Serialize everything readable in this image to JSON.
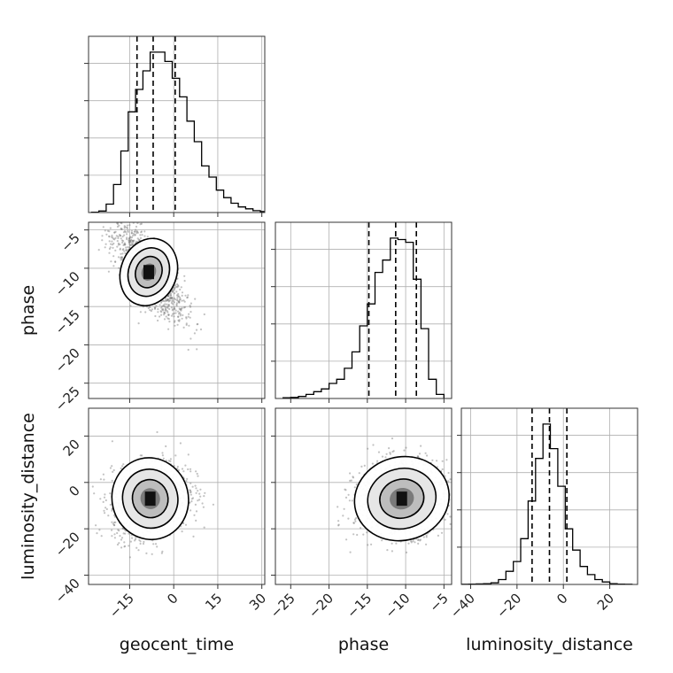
{
  "chart_data": {
    "type": "corner",
    "grid": true,
    "quantile_lines": "dashed",
    "parameters": [
      "geocent_time",
      "phase",
      "luminosity_distance"
    ],
    "axis_labels": {
      "geocent_time": "geocent_time",
      "phase": "phase",
      "luminosity_distance": "luminosity_distance"
    },
    "ranges": {
      "geocent_time": [
        -29,
        31
      ],
      "phase": [
        -27,
        -4
      ],
      "luminosity_distance": [
        -44,
        32
      ]
    },
    "ticks": {
      "geocent_time": [
        -15,
        0,
        15,
        30
      ],
      "phase": [
        -25,
        -20,
        -15,
        -10,
        -5
      ],
      "luminosity_distance": [
        -40,
        -20,
        0,
        20
      ]
    },
    "tick_labels": {
      "geocent_time": [
        "−15",
        "0",
        "15",
        "30"
      ],
      "phase": [
        "−25",
        "−20",
        "−15",
        "−10",
        "−5"
      ],
      "luminosity_distance": [
        "−40",
        "−20",
        "0",
        "20"
      ]
    },
    "quantiles": {
      "geocent_time": [
        -12.5,
        -7,
        0.5
      ],
      "phase": [
        -14.8,
        -11.3,
        -8.6
      ],
      "luminosity_distance": [
        -13.5,
        -6,
        1.5
      ]
    },
    "histograms": {
      "geocent_time": {
        "bin_start": -28,
        "bin_width": 2.5,
        "counts": [
          0.2,
          0.8,
          4.5,
          15,
          33,
          54,
          66,
          76,
          86,
          86,
          81,
          72,
          62,
          49,
          38,
          25,
          19,
          12,
          8,
          5,
          3,
          2,
          1,
          0.5
        ]
      },
      "phase": {
        "bin_start": -26,
        "bin_width": 1,
        "counts": [
          0.5,
          0.8,
          1.5,
          3,
          5,
          7,
          11,
          14,
          22,
          34,
          53,
          69,
          92,
          101,
          117,
          116,
          114,
          87,
          51,
          14,
          3
        ]
      },
      "luminosity_distance": {
        "bin_start": -44,
        "bin_width": 3.2,
        "counts": [
          0.1,
          0.2,
          0.3,
          0.5,
          1,
          3,
          8,
          14,
          28,
          51,
          77,
          98,
          83,
          60,
          34,
          21,
          11,
          6,
          3,
          1.5,
          0.5,
          0.2,
          0.1
        ]
      }
    },
    "pairs": [
      {
        "x": "geocent_time",
        "y": "phase",
        "center": [
          -8.5,
          -10.5
        ],
        "spread": [
          6,
          3
        ],
        "correlation": -0.75
      },
      {
        "x": "geocent_time",
        "y": "luminosity_distance",
        "center": [
          -8,
          -7
        ],
        "spread": [
          6.5,
          8
        ],
        "correlation": 0.2
      },
      {
        "x": "phase",
        "y": "luminosity_distance",
        "center": [
          -10.5,
          -7
        ],
        "spread": [
          3,
          8
        ],
        "correlation": 0.1
      }
    ]
  }
}
